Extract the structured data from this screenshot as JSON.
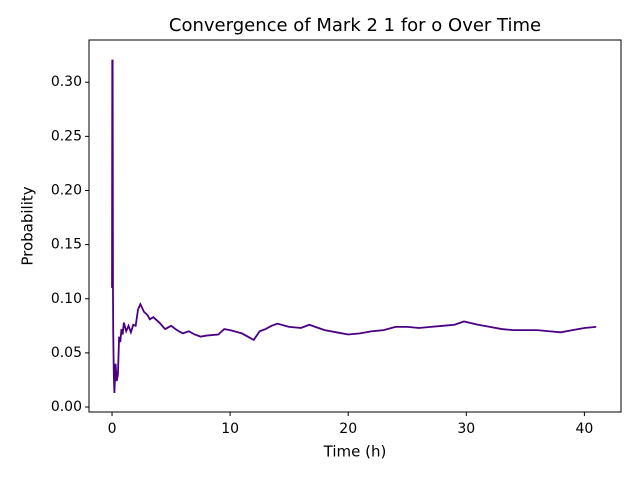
{
  "chart_data": {
    "type": "line",
    "title": "Convergence of Mark 2 1 for o Over Time",
    "x_label": "Time (h)",
    "y_label": "Probability",
    "x": [
      0,
      0.02,
      0.05,
      0.08,
      0.1,
      0.15,
      0.2,
      0.3,
      0.4,
      0.5,
      0.6,
      0.7,
      0.8,
      0.9,
      1.0,
      1.2,
      1.4,
      1.6,
      1.8,
      2.0,
      2.2,
      2.4,
      2.7,
      3.0,
      3.2,
      3.5,
      4.0,
      4.5,
      5.0,
      5.5,
      6.0,
      6.5,
      7.0,
      7.5,
      8.0,
      9.0,
      9.5,
      10,
      11,
      12,
      12.5,
      13,
      13.5,
      14,
      15,
      16,
      16.7,
      18,
      19,
      20,
      21,
      22,
      23,
      24,
      25,
      26,
      27,
      28,
      29,
      29.8,
      31,
      32,
      33,
      34,
      35,
      36,
      37,
      38,
      39,
      40,
      41
    ],
    "series": [
      {
        "color": "#4b0082",
        "values": [
          0.11,
          0.32,
          0.32,
          0.11,
          0.07,
          0.03,
          0.013,
          0.04,
          0.024,
          0.03,
          0.065,
          0.06,
          0.072,
          0.067,
          0.078,
          0.07,
          0.075,
          0.069,
          0.076,
          0.075,
          0.09,
          0.095,
          0.088,
          0.085,
          0.081,
          0.083,
          0.078,
          0.072,
          0.075,
          0.071,
          0.068,
          0.07,
          0.067,
          0.065,
          0.066,
          0.067,
          0.072,
          0.071,
          0.068,
          0.062,
          0.07,
          0.072,
          0.075,
          0.077,
          0.074,
          0.073,
          0.076,
          0.071,
          0.069,
          0.067,
          0.068,
          0.07,
          0.071,
          0.074,
          0.074,
          0.073,
          0.074,
          0.075,
          0.076,
          0.079,
          0.076,
          0.074,
          0.072,
          0.071,
          0.071,
          0.071,
          0.07,
          0.069,
          0.071,
          0.073,
          0.074
        ]
      }
    ],
    "xlim": [
      -1.95,
      43.1
    ],
    "ylim": [
      -0.0046,
      0.339
    ],
    "xticks": [
      0,
      10,
      20,
      30,
      40
    ],
    "yticks": [
      {
        "value": 0,
        "label": "0.00"
      },
      {
        "value": 0.05,
        "label": "0.05"
      },
      {
        "value": 0.1,
        "label": "0.10"
      },
      {
        "value": 0.15,
        "label": "0.15"
      },
      {
        "value": 0.2,
        "label": "0.20"
      },
      {
        "value": 0.25,
        "label": "0.25"
      },
      {
        "value": 0.3,
        "label": "0.30"
      }
    ]
  }
}
